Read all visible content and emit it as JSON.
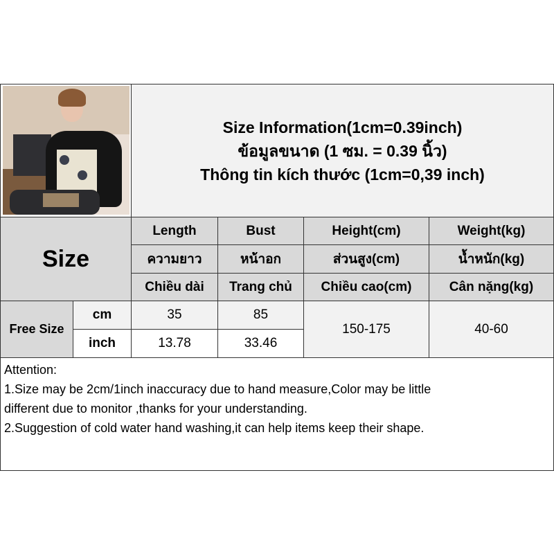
{
  "title_lines": [
    "Size Information(1cm=0.39inch)",
    "ข้อมูลขนาด (1 ซม. = 0.39 นิ้ว)",
    "Thông tin kích thước (1cm=0,39 inch)"
  ],
  "size_label": "Size",
  "columns": [
    {
      "en": "Length",
      "th": "ความยาว",
      "vi": "Chiều dài"
    },
    {
      "en": "Bust",
      "th": "หน้าอก",
      "vi": "Trang chủ"
    },
    {
      "en": "Height(cm)",
      "th": "ส่วนสูง(cm)",
      "vi": "Chiều cao(cm)"
    },
    {
      "en": "Weight(kg)",
      "th": "น้ำหนัก(kg)",
      "vi": "Cân nặng(kg)"
    }
  ],
  "row": {
    "size": "Free Size",
    "cm_label": "cm",
    "inch_label": "inch",
    "cm": [
      "35",
      "85"
    ],
    "inch": [
      "13.78",
      "33.46"
    ],
    "height": "150-175",
    "weight": "40-60"
  },
  "attention": [
    "Attention:",
    "1.Size may be 2cm/1inch inaccuracy due to hand measure,Color may be little",
    "different due to monitor ,thanks for your understanding.",
    "2.Suggestion of cold water hand washing,it can help items keep their shape."
  ]
}
